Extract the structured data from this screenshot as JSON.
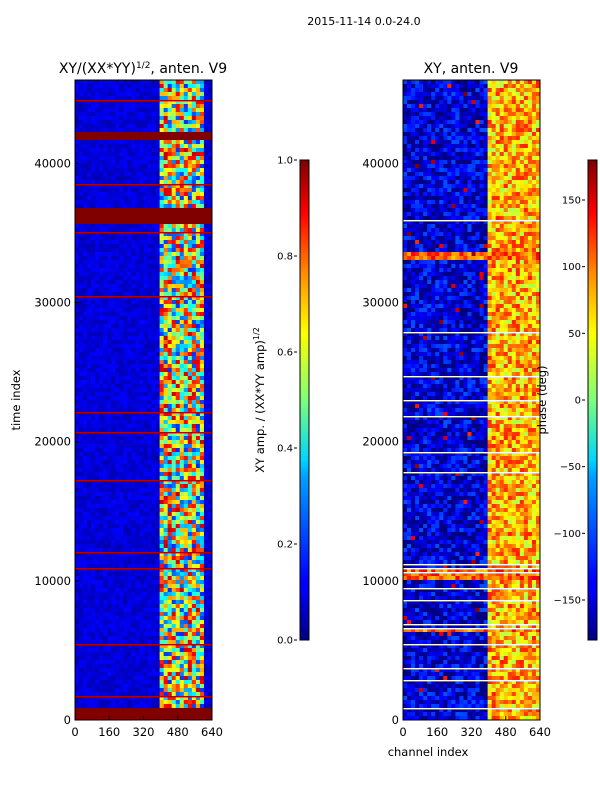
{
  "figure_title": "2015-11-14 0.0-24.0",
  "colors": {
    "jet_dark_blue": "#00007f",
    "jet_blue": "#0000ff",
    "jet_cyan": "#00ffff",
    "jet_yellow": "#ffff00",
    "jet_red": "#ff0000",
    "jet_dark_red": "#7f0000"
  },
  "chart_data": [
    {
      "type": "heatmap",
      "title": "XY/(XX*YY)",
      "title_sup": "1/2",
      "title_suffix": ", anten. V9",
      "xlabel": "",
      "ylabel": "time index",
      "xlim": [
        0,
        640
      ],
      "ylim": [
        0,
        46000
      ],
      "xticks": [
        "0",
        "160",
        "320",
        "480",
        "640"
      ],
      "xtick_values": [
        0,
        160,
        320,
        480,
        640
      ],
      "yticks": [
        "0",
        "10000",
        "20000",
        "30000",
        "40000"
      ],
      "ytick_values": [
        0,
        10000,
        20000,
        30000,
        40000
      ],
      "colormap": "jet",
      "colorbar": {
        "label": "XY amp. / (XX*YY amp)",
        "label_sup": "1/2",
        "range": [
          0.0,
          1.0
        ],
        "ticks": [
          "0.0",
          "0.2",
          "0.4",
          "0.6",
          "0.8",
          "1.0"
        ],
        "tick_values": [
          0.0,
          0.2,
          0.4,
          0.6,
          0.8,
          1.0
        ]
      },
      "features": {
        "background_level": 0.08,
        "active_band_channels": [
          400,
          600
        ],
        "active_band_level": 0.55,
        "saturated_time_ranges": [
          [
            35700,
            36800
          ],
          [
            41600,
            42300
          ],
          [
            0,
            800
          ]
        ],
        "flag_level": 1.0
      }
    },
    {
      "type": "heatmap",
      "title": "XY, anten. V9",
      "xlabel": "channel index",
      "ylabel": "",
      "xlim": [
        0,
        640
      ],
      "ylim": [
        0,
        46000
      ],
      "xticks": [
        "0",
        "160",
        "320",
        "480",
        "640"
      ],
      "xtick_values": [
        0,
        160,
        320,
        480,
        640
      ],
      "yticks": [
        "0",
        "10000",
        "20000",
        "30000",
        "40000"
      ],
      "ytick_values": [
        0,
        10000,
        20000,
        30000,
        40000
      ],
      "colormap": "jet",
      "colorbar": {
        "label": "phase (deg)",
        "range": [
          -180,
          180
        ],
        "ticks": [
          "−150",
          "−100",
          "−50",
          "0",
          "50",
          "100",
          "150"
        ],
        "tick_values": [
          -150,
          -100,
          -50,
          0,
          50,
          100,
          150
        ]
      },
      "features": {
        "background_level": -150,
        "active_band_channels": [
          400,
          640
        ],
        "active_band_level": 90,
        "white_gap_level": "flagged",
        "bright_time_ranges": [
          [
            10000,
            11000
          ],
          [
            6200,
            6700
          ],
          [
            33000,
            33500
          ]
        ]
      }
    }
  ]
}
